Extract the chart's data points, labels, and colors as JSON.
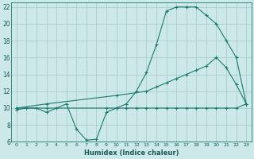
{
  "xlabel": "Humidex (Indice chaleur)",
  "bg_color": "#cce8e8",
  "line_color": "#1a7a6e",
  "grid_color": "#aacece",
  "xlim": [
    -0.5,
    23.5
  ],
  "ylim": [
    6,
    22.5
  ],
  "xticks": [
    0,
    1,
    2,
    3,
    4,
    5,
    6,
    7,
    8,
    9,
    10,
    11,
    12,
    13,
    14,
    15,
    16,
    17,
    18,
    19,
    20,
    21,
    22,
    23
  ],
  "yticks": [
    6,
    8,
    10,
    12,
    14,
    16,
    18,
    20,
    22
  ],
  "line1_x": [
    0,
    1,
    2,
    3,
    4,
    5,
    6,
    7,
    8,
    9,
    10,
    11,
    12,
    13,
    14,
    15,
    16,
    17,
    18,
    19,
    20,
    21,
    22,
    23
  ],
  "line1_y": [
    9.8,
    10,
    10,
    9.5,
    10,
    10.5,
    7.5,
    6.2,
    6.3,
    9.5,
    10,
    10.5,
    12,
    14.2,
    17.5,
    21.5,
    22,
    22,
    22,
    21,
    20,
    18,
    16,
    10.5
  ],
  "line2_x": [
    0,
    3,
    10,
    13,
    14,
    15,
    16,
    17,
    18,
    19,
    20,
    21,
    22,
    23
  ],
  "line2_y": [
    10,
    10.5,
    11.5,
    12,
    12.5,
    13,
    13.5,
    14,
    14.5,
    15,
    16,
    14.8,
    12.8,
    10.5
  ],
  "line3_x": [
    0,
    3,
    9,
    10,
    11,
    12,
    13,
    14,
    15,
    16,
    17,
    18,
    19,
    20,
    21,
    22,
    23
  ],
  "line3_y": [
    10,
    10,
    10,
    10,
    10,
    10,
    10,
    10,
    10,
    10,
    10,
    10,
    10,
    10,
    10,
    10,
    10.5
  ]
}
